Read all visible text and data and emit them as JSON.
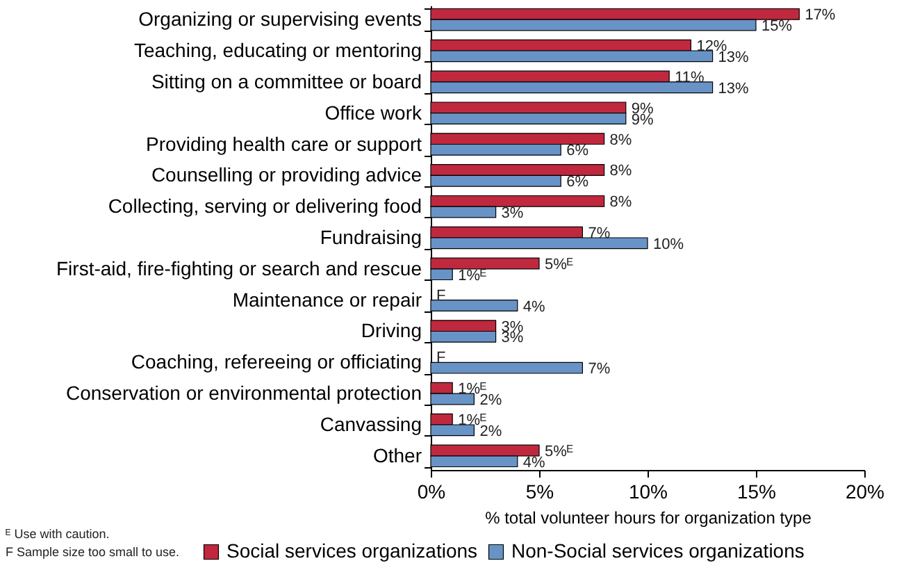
{
  "chart_data": {
    "type": "bar",
    "orientation": "horizontal",
    "xlabel": "% total volunteer hours for organization type",
    "categories": [
      "Organizing or supervising events",
      "Teaching, educating or mentoring",
      "Sitting on a committee or board",
      "Office work",
      "Providing health care or support",
      "Counselling or providing advice",
      "Collecting, serving or delivering food",
      "Fundraising",
      "First-aid, fire-fighting or search and rescue",
      "Maintenance or repair",
      "Driving",
      "Coaching, refereeing or officiating",
      "Conservation or environmental protection",
      "Canvassing",
      "Other"
    ],
    "series": [
      {
        "name": "Social services organizations",
        "color": "#c0283e",
        "values": [
          17,
          12,
          11,
          9,
          8,
          8,
          8,
          7,
          5,
          null,
          3,
          null,
          1,
          1,
          5
        ],
        "value_labels": [
          "17%",
          "12%",
          "11%",
          "9%",
          "8%",
          "8%",
          "8%",
          "7%",
          "5%ᴱ",
          "F",
          "3%",
          "F",
          "1%ᴱ",
          "1%ᴱ",
          "5%ᴱ"
        ]
      },
      {
        "name": "Non-Social services organizations",
        "color": "#6893c6",
        "values": [
          15,
          13,
          13,
          9,
          6,
          6,
          3,
          10,
          1,
          4,
          3,
          7,
          2,
          2,
          4
        ],
        "value_labels": [
          "15%",
          "13%",
          "13%",
          "9%",
          "6%",
          "6%",
          "3%",
          "10%",
          "1%ᴱ",
          "4%",
          "3%",
          "7%",
          "2%",
          "2%",
          "4%"
        ]
      }
    ],
    "xlim": [
      0,
      20
    ],
    "xticks": [
      {
        "value": 0,
        "label": "0%"
      },
      {
        "value": 5,
        "label": "5%"
      },
      {
        "value": 10,
        "label": "10%"
      },
      {
        "value": 15,
        "label": "15%"
      },
      {
        "value": 20,
        "label": "20%"
      }
    ],
    "grid": false,
    "legend": "bottom",
    "annotations": [
      "ᴱ Use with caution.",
      "F Sample size too small to use."
    ]
  }
}
